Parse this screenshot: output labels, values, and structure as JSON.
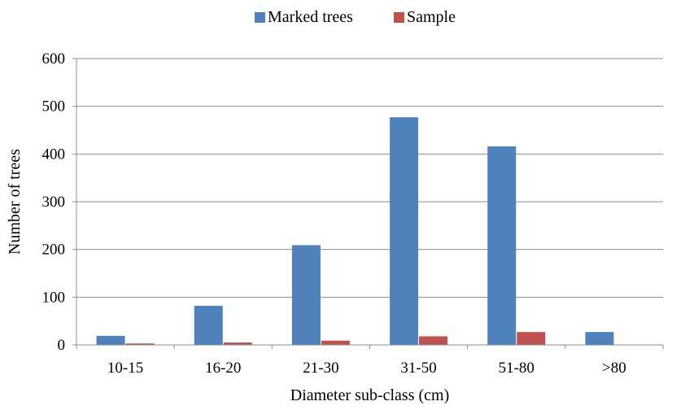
{
  "chart_data": {
    "type": "bar",
    "title": "",
    "xlabel": "Diameter sub-class (cm)",
    "ylabel": "Number of trees",
    "categories": [
      "10-15",
      "16-20",
      "21-30",
      "31-50",
      "51-80",
      ">80"
    ],
    "series": [
      {
        "name": "Marked trees",
        "color": "#4F81BD",
        "values": [
          19,
          82,
          209,
          477,
          416,
          27
        ]
      },
      {
        "name": "Sample",
        "color": "#C0504D",
        "values": [
          3,
          5,
          9,
          18,
          27,
          0
        ]
      }
    ],
    "ylim": [
      0,
      600
    ],
    "yticks": [
      0,
      100,
      200,
      300,
      400,
      500,
      600
    ],
    "grid": true,
    "legend_position": "top-center"
  }
}
